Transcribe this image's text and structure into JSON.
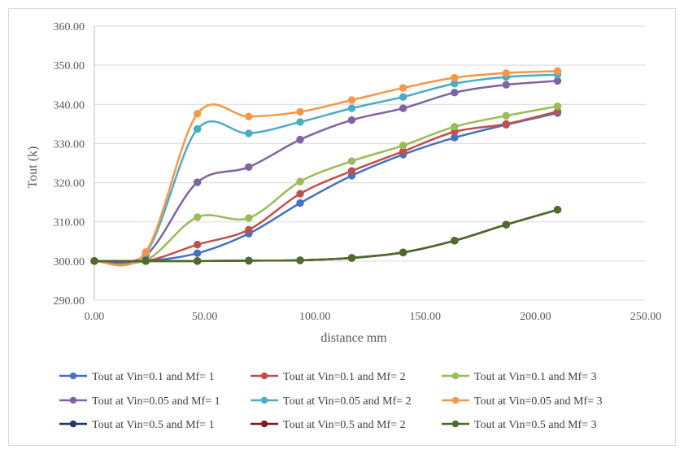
{
  "chart_data": {
    "type": "line",
    "title": "",
    "xlabel": "distance mm",
    "ylabel": "Tout (k)",
    "xlim": [
      0,
      250
    ],
    "ylim": [
      290,
      360
    ],
    "x_ticks": [
      0,
      50,
      100,
      150,
      200,
      250
    ],
    "y_ticks": [
      290,
      300,
      310,
      320,
      330,
      340,
      350,
      360
    ],
    "x_tick_labels": [
      "0.00",
      "50.00",
      "100.00",
      "150.00",
      "200.00",
      "250.00"
    ],
    "y_tick_labels": [
      "290.00",
      "300.00",
      "310.00",
      "320.00",
      "330.00",
      "340.00",
      "350.00",
      "360.00"
    ],
    "grid": "horizontal",
    "legend_position": "bottom",
    "smooth": true,
    "x": [
      0,
      23.3,
      46.7,
      70,
      93.3,
      116.7,
      140,
      163.3,
      186.7,
      210
    ],
    "series": [
      {
        "name": "Tout at Vin=0.1 and Mf= 1",
        "color": "#4472C4",
        "values": [
          300,
          300,
          302,
          307,
          314.8,
          321.8,
          327.2,
          331.5,
          334.8,
          337.8
        ]
      },
      {
        "name": "Tout at Vin=0.1 and Mf= 2",
        "color": "#C0504D",
        "values": [
          300,
          300,
          304.2,
          308,
          317.2,
          323,
          328,
          333,
          335,
          338.2
        ]
      },
      {
        "name": "Tout at Vin=0.1 and Mf= 3",
        "color": "#9BBB59",
        "values": [
          300,
          300.2,
          311.2,
          311,
          320.3,
          325.5,
          329.5,
          334.3,
          337.1,
          339.5
        ]
      },
      {
        "name": "Tout at Vin=0.05 and Mf= 1",
        "color": "#8064A2",
        "values": [
          300,
          301.5,
          320.1,
          324,
          331,
          336,
          339,
          343,
          345,
          346
        ]
      },
      {
        "name": "Tout at Vin=0.05 and Mf= 2",
        "color": "#4BACC6",
        "values": [
          300,
          302,
          333.7,
          332.6,
          335.5,
          339,
          341.9,
          345.3,
          347,
          347.6
        ]
      },
      {
        "name": "Tout at Vin=0.05 and Mf= 3",
        "color": "#F79646",
        "values": [
          300,
          302.3,
          337.6,
          336.9,
          338.1,
          341.1,
          344.2,
          346.8,
          348,
          348.5
        ]
      },
      {
        "name": "Tout at Vin=0.5 and Mf= 1",
        "color": "#1F3864",
        "values": [
          300,
          300,
          300,
          300.1,
          300.2,
          300.8,
          302.2,
          305.2,
          309.3,
          313.1
        ]
      },
      {
        "name": "Tout at Vin=0.5 and Mf= 2",
        "color": "#7B1E1E",
        "values": [
          300,
          300,
          300,
          300.1,
          300.2,
          300.8,
          302.2,
          305.2,
          309.3,
          313.1
        ]
      },
      {
        "name": "Tout at Vin=0.5 and Mf= 3",
        "color": "#4E6B2A",
        "values": [
          300,
          300,
          300,
          300.1,
          300.2,
          300.8,
          302.2,
          305.2,
          309.3,
          313.1
        ]
      }
    ]
  }
}
